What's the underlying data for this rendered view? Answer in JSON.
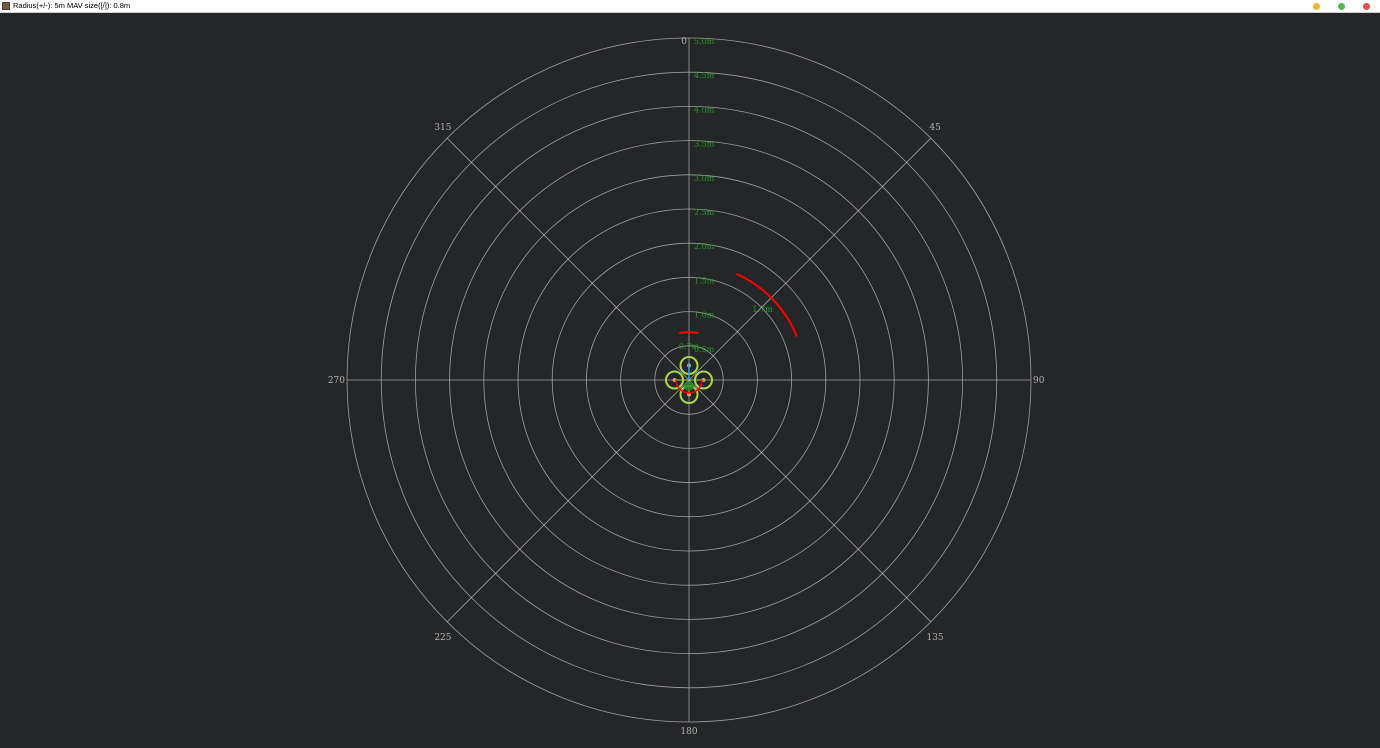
{
  "window": {
    "title": "Radius(+/-): 5m MAV size([/]): 0.8m",
    "controls": [
      {
        "name": "minimize",
        "color": "#f5b335"
      },
      {
        "name": "maximize",
        "color": "#4cbf4c"
      },
      {
        "name": "close",
        "color": "#e8504a"
      }
    ]
  },
  "radar": {
    "max_radius_m": 5.0,
    "ring_step_m": 0.5,
    "ring_labels": [
      "0.5m",
      "1.0m",
      "1.5m",
      "2.0m",
      "2.5m",
      "3.0m",
      "3.5m",
      "4.0m",
      "4.5m",
      "5.0m"
    ],
    "angle_labels": [
      {
        "deg": 0,
        "label": "0"
      },
      {
        "deg": 45,
        "label": "45"
      },
      {
        "deg": 90,
        "label": "90"
      },
      {
        "deg": 135,
        "label": "135"
      },
      {
        "deg": 180,
        "label": "180"
      },
      {
        "deg": 225,
        "label": "225"
      },
      {
        "deg": 270,
        "label": "270"
      },
      {
        "deg": 315,
        "label": "315"
      }
    ],
    "obstacles": [
      {
        "distance_m": 0.7,
        "start_deg": -12,
        "end_deg": 12,
        "label": "0.7m"
      },
      {
        "distance_m": 1.7,
        "start_deg": 24,
        "end_deg": 68,
        "label": "1.7m"
      }
    ],
    "mav_size_m": 0.8,
    "colors": {
      "background": "#252628",
      "grid": "#bdbdbd",
      "ring_label": "#1fa01f",
      "obstacle": "#ff0000",
      "mav": "#a8d848",
      "heading": "#3aa0e8"
    }
  }
}
